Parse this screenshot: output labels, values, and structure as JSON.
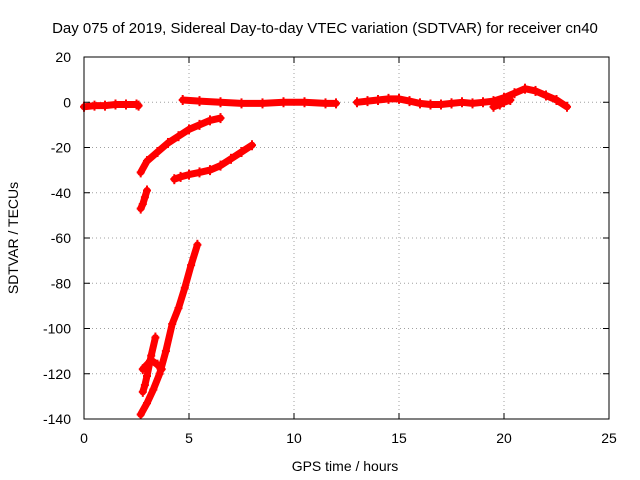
{
  "chart_data": {
    "type": "line",
    "title": "Day 075 of 2019, Sidereal Day-to-day VTEC variation (SDTVAR) for receiver cn40",
    "xlabel": "GPS time / hours",
    "ylabel": "SDTVAR / TECUs",
    "xlim": [
      0,
      25
    ],
    "ylim": [
      -140,
      20
    ],
    "x_ticks": [
      0,
      5,
      10,
      15,
      20,
      25
    ],
    "y_ticks": [
      -140,
      -120,
      -100,
      -80,
      -60,
      -40,
      -20,
      0,
      20
    ],
    "grid": true,
    "legend": "none",
    "color": "#ff0000",
    "series": [
      {
        "x": [
          0,
          0.5,
          1.0,
          1.5,
          2.0,
          2.5,
          2.6
        ],
        "y": [
          -2,
          -1.5,
          -1.5,
          -1,
          -1,
          -1,
          -1.5
        ]
      },
      {
        "x": [
          2.7,
          3.0,
          3.5,
          4.0,
          4.5,
          5.0,
          5.5,
          6.0,
          6.5
        ],
        "y": [
          -31,
          -26,
          -22,
          -18,
          -15,
          -12,
          -10,
          -8,
          -7
        ]
      },
      {
        "x": [
          2.7,
          2.8,
          2.9,
          3.0
        ],
        "y": [
          -47,
          -45,
          -42,
          -39
        ]
      },
      {
        "x": [
          4.3,
          4.6,
          5.0,
          5.5,
          6.0,
          6.5,
          7.0,
          7.5,
          8.0
        ],
        "y": [
          -34,
          -33,
          -32,
          -31,
          -30,
          -28,
          -25,
          -22,
          -19
        ]
      },
      {
        "x": [
          2.7,
          3.0,
          3.3,
          3.6,
          3.9,
          4.2,
          4.5,
          4.8,
          5.1,
          5.4
        ],
        "y": [
          -138,
          -133,
          -127,
          -120,
          -110,
          -98,
          -91,
          -82,
          -72,
          -63
        ]
      },
      {
        "x": [
          2.8,
          3.0,
          3.2,
          3.5,
          3.7
        ],
        "y": [
          -118,
          -116,
          -114,
          -116,
          -118
        ]
      },
      {
        "x": [
          2.8,
          2.9,
          3.0,
          3.2,
          3.4
        ],
        "y": [
          -128,
          -125,
          -121,
          -112,
          -104
        ]
      },
      {
        "x": [
          4.7,
          5.5,
          6.5,
          7.5,
          8.5,
          9.5,
          10.5,
          11.5,
          12.0
        ],
        "y": [
          1,
          0.5,
          0,
          -0.5,
          -0.5,
          0,
          0,
          -0.5,
          -0.5
        ]
      },
      {
        "x": [
          13.0,
          13.5,
          14.0,
          14.5,
          15.0,
          15.5,
          16.0,
          16.5,
          17.0,
          17.5
        ],
        "y": [
          0,
          0.5,
          1,
          1.5,
          1.5,
          0.5,
          -0.5,
          -1,
          -1,
          -0.5
        ]
      },
      {
        "x": [
          17.5,
          18.0,
          18.5,
          19.0,
          19.5,
          20.0,
          20.5,
          21.0,
          21.5,
          22.0,
          22.5,
          23.0
        ],
        "y": [
          -0.5,
          0,
          -0.5,
          0,
          0.5,
          2,
          4,
          6,
          5,
          3,
          1,
          -2
        ]
      },
      {
        "x": [
          19.5,
          19.8,
          20.0,
          20.3
        ],
        "y": [
          -2,
          -1,
          0,
          1
        ]
      }
    ]
  }
}
